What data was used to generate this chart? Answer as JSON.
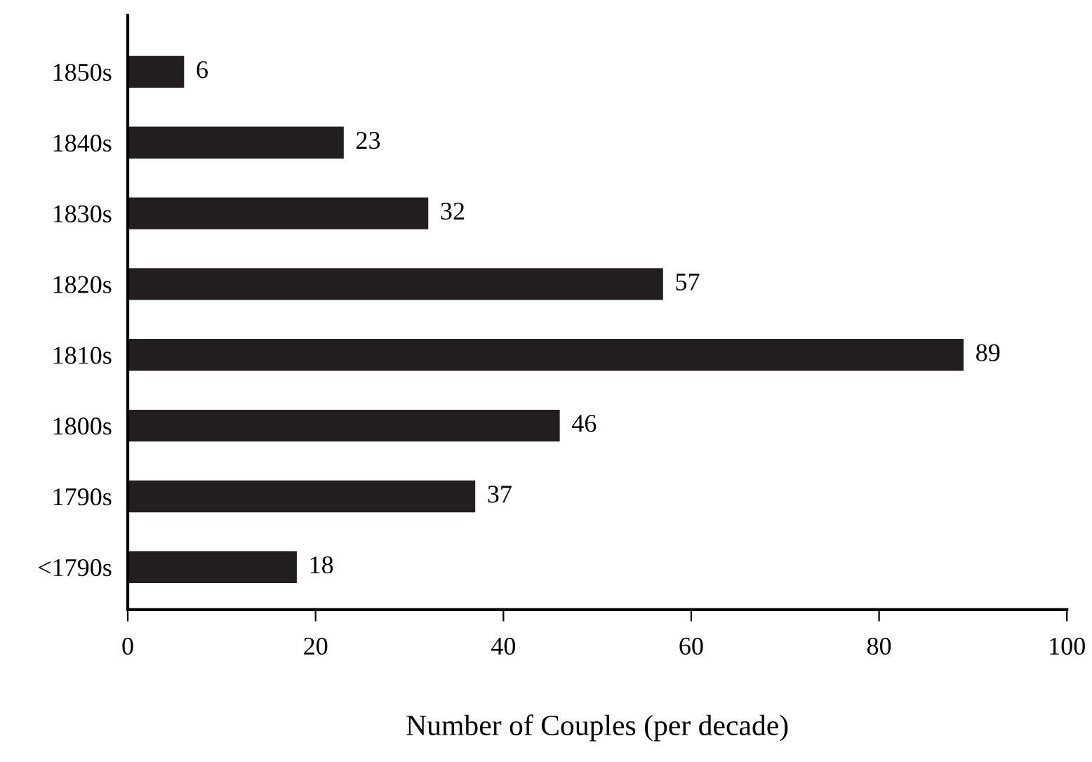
{
  "chart_data": {
    "type": "bar",
    "orientation": "horizontal",
    "xlabel": "Number of Couples (per decade)",
    "categories": [
      "1850s",
      "1840s",
      "1830s",
      "1820s",
      "1810s",
      "1800s",
      "1790s",
      "<1790s"
    ],
    "values": [
      6,
      23,
      32,
      57,
      89,
      46,
      37,
      18
    ],
    "color": "#231f20",
    "data_labels": true,
    "xlim": [
      0,
      100
    ],
    "xticks": [
      0,
      20,
      40,
      60,
      80,
      100
    ],
    "grid": false,
    "legend": false
  }
}
